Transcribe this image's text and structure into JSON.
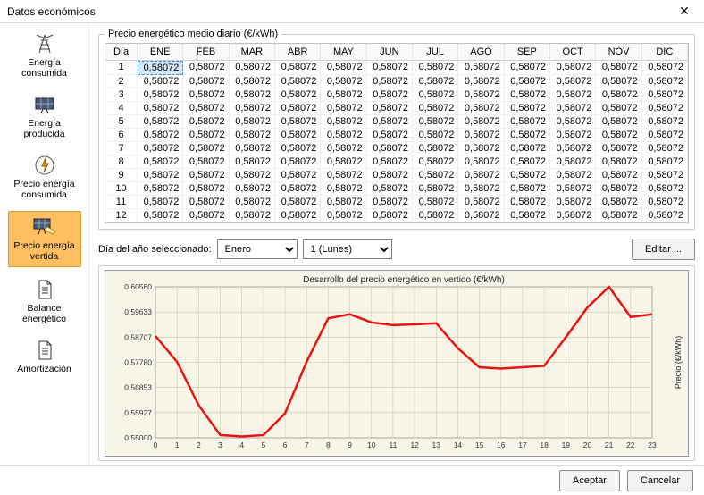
{
  "window": {
    "title": "Datos económicos"
  },
  "sidebar": {
    "items": [
      {
        "label": "Energía consumida",
        "icon": "tower"
      },
      {
        "label": "Energía producida",
        "icon": "panel"
      },
      {
        "label": "Precio energía consumida",
        "icon": "bolt"
      },
      {
        "label": "Precio energía vertida",
        "icon": "panel-price",
        "selected": true
      },
      {
        "label": "Balance energético",
        "icon": "doc"
      },
      {
        "label": "Amortización",
        "icon": "doc"
      }
    ]
  },
  "table": {
    "title": "Precio energético medio diario (€/kWh)",
    "day_header": "Día",
    "months": [
      "ENE",
      "FEB",
      "MAR",
      "ABR",
      "MAY",
      "JUN",
      "JUL",
      "AGO",
      "SEP",
      "OCT",
      "NOV",
      "DIC"
    ],
    "num_rows": 12,
    "value": "0,58072",
    "selected_cell": {
      "row": 1,
      "col": 0
    }
  },
  "selector": {
    "label": "Día del año seleccionado:",
    "month_options": [
      "Enero"
    ],
    "month_selected": "Enero",
    "day_options": [
      "1 (Lunes)"
    ],
    "day_selected": "1 (Lunes)",
    "edit_label": "Editar ..."
  },
  "chart": {
    "title": "Desarrollo del precio energético en vertido (€/kWh)",
    "ylabel": "Precio (€/kWh)",
    "y_ticks": [
      "0.60560",
      "0.59633",
      "0.58707",
      "0.57780",
      "0.56853",
      "0.55927",
      "0.55000"
    ],
    "x_ticks": [
      0,
      1,
      2,
      3,
      4,
      5,
      6,
      7,
      8,
      9,
      10,
      11,
      12,
      13,
      14,
      15,
      16,
      17,
      18,
      19,
      20,
      21,
      22,
      23
    ],
    "ylim": [
      0.55,
      0.6056
    ],
    "background_color": "#f6f5e8",
    "grid_color": "#c9c6a5",
    "line_color": "#e81313",
    "line_width": 2.5,
    "values": [
      0.5875,
      0.578,
      0.562,
      0.551,
      0.5505,
      0.551,
      0.559,
      0.578,
      0.594,
      0.5955,
      0.5925,
      0.5915,
      0.5918,
      0.5922,
      0.583,
      0.576,
      0.5755,
      0.576,
      0.5765,
      0.587,
      0.598,
      0.6056,
      0.5945,
      0.5955
    ]
  },
  "footer": {
    "accept": "Aceptar",
    "cancel": "Cancelar"
  }
}
